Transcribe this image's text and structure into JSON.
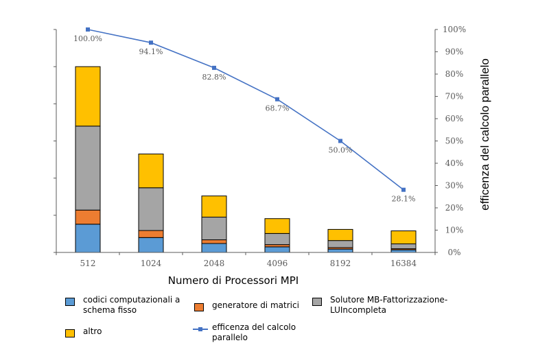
{
  "chart_data": {
    "type": "bar",
    "stacked": true,
    "categories": [
      "512",
      "1024",
      "2048",
      "4096",
      "8192",
      "16384"
    ],
    "xlabel": "Numero di Processori MPI",
    "ylabel_right": "efficenza del calcolo parallelo",
    "left_axis": {
      "ylim": [
        0,
        60
      ],
      "tick_count": 6,
      "tick_labels_visible": false
    },
    "right_axis": {
      "ylim": [
        0,
        100
      ],
      "ticks": [
        "0%",
        "10%",
        "20%",
        "30%",
        "40%",
        "50%",
        "60%",
        "70%",
        "80%",
        "90%",
        "100%"
      ]
    },
    "series": [
      {
        "name": "codici computazionali a schema fisso",
        "color": "#5B9BD5",
        "values": [
          7.6,
          4.0,
          2.4,
          1.5,
          0.9,
          0.7
        ]
      },
      {
        "name": "generatore di matrici",
        "color": "#ED7D31",
        "values": [
          3.8,
          1.9,
          1.0,
          0.6,
          0.4,
          0.3
        ]
      },
      {
        "name": "Solutore MB-Fattorizzazione-LUIncompleta",
        "color": "#A5A5A5",
        "values": [
          22.6,
          11.5,
          6.1,
          3.0,
          1.9,
          1.3
        ]
      },
      {
        "name": "altro",
        "color": "#FFC000",
        "values": [
          16.0,
          9.1,
          5.7,
          4.0,
          3.0,
          3.5
        ]
      }
    ],
    "line_series": {
      "name": "efficenza del calcolo parallelo",
      "color": "#4472C4",
      "axis": "right",
      "values": [
        100.0,
        94.1,
        82.8,
        68.7,
        50.0,
        28.1
      ],
      "labels": [
        "100.0%",
        "94.1%",
        "82.8%",
        "68.7%",
        "50.0%",
        "28.1%"
      ]
    },
    "legend_position": "bottom",
    "grid": false
  }
}
